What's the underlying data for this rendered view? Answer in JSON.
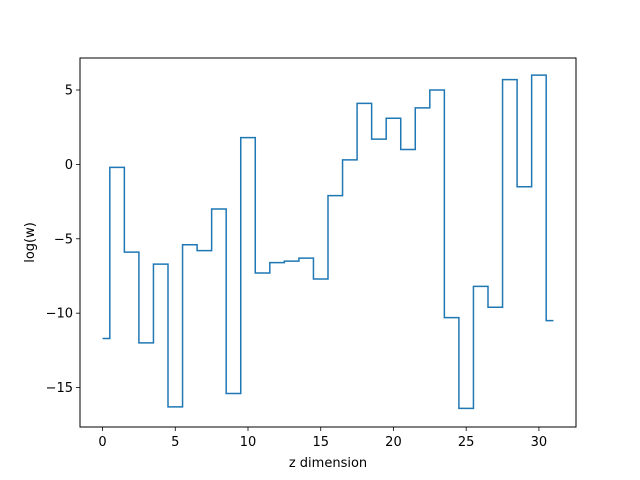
{
  "chart_data": {
    "type": "line",
    "step": "mid",
    "xlabel": "z dimension",
    "ylabel": "log(w)",
    "xlim": [
      -1.55,
      32.55
    ],
    "ylim": [
      -17.65,
      7.15
    ],
    "grid": false,
    "x_ticks": [
      0,
      5,
      10,
      15,
      20,
      25,
      30
    ],
    "x_tick_labels": [
      "0",
      "5",
      "10",
      "15",
      "20",
      "25",
      "30"
    ],
    "y_ticks": [
      -15,
      -10,
      -5,
      0,
      5
    ],
    "y_tick_labels": [
      "−15",
      "−10",
      "−5",
      "0",
      "5"
    ],
    "series": [
      {
        "color": "#1f77b4",
        "x": [
          0,
          1,
          2,
          3,
          4,
          5,
          6,
          7,
          8,
          9,
          10,
          11,
          12,
          13,
          14,
          15,
          16,
          17,
          18,
          19,
          20,
          21,
          22,
          23,
          24,
          25,
          26,
          27,
          28,
          29,
          30,
          31
        ],
        "values": [
          -11.7,
          -0.2,
          -5.9,
          -12.0,
          -6.7,
          -16.3,
          -5.4,
          -5.8,
          -3.0,
          -15.4,
          1.8,
          -7.3,
          -6.6,
          -6.5,
          -6.3,
          -7.7,
          -2.1,
          0.3,
          4.1,
          1.7,
          3.1,
          1.0,
          3.8,
          5.0,
          -10.3,
          -16.4,
          -8.2,
          -9.6,
          5.7,
          -1.5,
          6.0,
          -10.5
        ]
      }
    ]
  }
}
